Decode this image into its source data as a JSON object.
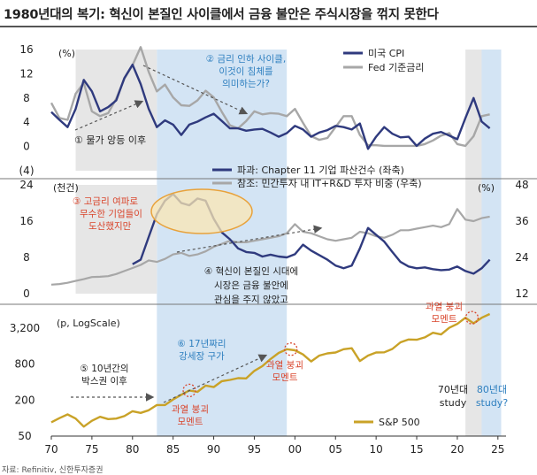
{
  "title": "1980년대의 복기: 혁신이 본질인 사이클에서 금융 불안은 주식시장을 꺾지 못한다",
  "source": "자료: Refinitiv, 신한투자증권",
  "colors": {
    "navy": "#2f3a7e",
    "gray": "#a7a7a7",
    "gold": "#c9a227",
    "shade_blue": "#d3e4f4",
    "shade_gray": "#e6e6e6",
    "text_blue": "#2e7fbf",
    "text_red": "#d9452c",
    "ellipse_fill": "#fbe7b4",
    "ellipse_stroke": "#e8a23b"
  },
  "chart_data": [
    {
      "type": "line",
      "panel": "top",
      "unit_label": "(%)",
      "ylim": [
        -4,
        16
      ],
      "yticks": [
        16,
        12,
        8,
        4,
        0,
        "(4)"
      ],
      "x": [
        1970,
        1971,
        1972,
        1973,
        1974,
        1975,
        1976,
        1977,
        1978,
        1979,
        1980,
        1981,
        1982,
        1983,
        1984,
        1985,
        1986,
        1987,
        1988,
        1989,
        1990,
        1991,
        1992,
        1993,
        1994,
        1995,
        1996,
        1997,
        1998,
        1999,
        2000,
        2001,
        2002,
        2003,
        2004,
        2005,
        2006,
        2007,
        2008,
        2009,
        2010,
        2011,
        2012,
        2013,
        2014,
        2015,
        2016,
        2017,
        2018,
        2019,
        2020,
        2021,
        2022,
        2023,
        2024
      ],
      "series": [
        {
          "name": "미국 CPI",
          "color": "navy",
          "values": [
            5.7,
            4.4,
            3.2,
            6.2,
            11.0,
            9.1,
            5.8,
            6.5,
            7.6,
            11.3,
            13.5,
            10.3,
            6.2,
            3.2,
            4.3,
            3.6,
            1.9,
            3.6,
            4.1,
            4.8,
            5.4,
            4.2,
            3.0,
            3.0,
            2.6,
            2.8,
            2.9,
            2.3,
            1.6,
            2.2,
            3.4,
            2.8,
            1.6,
            2.3,
            2.7,
            3.4,
            3.2,
            2.8,
            3.8,
            -0.4,
            1.6,
            3.2,
            2.1,
            1.5,
            1.6,
            0.1,
            1.3,
            2.1,
            2.4,
            1.8,
            1.2,
            4.7,
            8.0,
            4.1,
            3.0
          ]
        },
        {
          "name": "Fed 기준금리",
          "color": "gray",
          "values": [
            7.2,
            4.7,
            4.4,
            8.7,
            10.5,
            5.8,
            5.0,
            5.5,
            7.9,
            11.2,
            13.4,
            16.4,
            12.3,
            9.1,
            10.2,
            8.1,
            6.8,
            6.7,
            7.6,
            9.2,
            8.1,
            5.7,
            3.5,
            3.0,
            4.2,
            5.8,
            5.3,
            5.5,
            5.4,
            5.0,
            6.2,
            3.9,
            1.7,
            1.1,
            1.4,
            3.2,
            5.0,
            5.0,
            1.9,
            0.2,
            0.2,
            0.1,
            0.1,
            0.1,
            0.1,
            0.1,
            0.4,
            1.0,
            1.8,
            2.2,
            0.4,
            0.1,
            1.7,
            5.0,
            5.3
          ]
        }
      ],
      "annotations": [
        "① 물가 앙등 이후",
        "② 금리 인하 사이클, 이것이 침체를 의미하는가?"
      ]
    },
    {
      "type": "line",
      "panel": "middle",
      "left_unit_label": "(천건)",
      "right_unit_label": "(%)",
      "ylim_left": [
        0,
        24
      ],
      "ylim_right": [
        12,
        48
      ],
      "yticks_left": [
        24,
        16,
        8,
        0
      ],
      "yticks_right": [
        48,
        36,
        24,
        12
      ],
      "x": [
        1970,
        1971,
        1972,
        1973,
        1974,
        1975,
        1976,
        1977,
        1978,
        1979,
        1980,
        1981,
        1982,
        1983,
        1984,
        1985,
        1986,
        1987,
        1988,
        1989,
        1990,
        1991,
        1992,
        1993,
        1994,
        1995,
        1996,
        1997,
        1998,
        1999,
        2000,
        2001,
        2002,
        2003,
        2004,
        2005,
        2006,
        2007,
        2008,
        2009,
        2010,
        2011,
        2012,
        2013,
        2014,
        2015,
        2016,
        2017,
        2018,
        2019,
        2020,
        2021,
        2022,
        2023,
        2024
      ],
      "series": [
        {
          "name": "파과: Chapter 11 기업 파산건수 (좌축)",
          "color": "navy",
          "axis": "left",
          "values": [
            null,
            null,
            null,
            null,
            null,
            null,
            null,
            null,
            null,
            null,
            6.5,
            7.5,
            12.5,
            17.5,
            20.5,
            22.0,
            20.0,
            19.5,
            21.0,
            20.5,
            16.5,
            13.5,
            12.0,
            10.0,
            9.2,
            9.0,
            8.2,
            8.6,
            8.2,
            8.0,
            8.7,
            10.8,
            9.5,
            8.5,
            7.5,
            6.2,
            5.6,
            6.2,
            10.0,
            14.5,
            13.0,
            11.5,
            9.2,
            7.0,
            6.0,
            5.6,
            5.8,
            5.4,
            5.2,
            5.3,
            6.0,
            5.0,
            4.4,
            5.6,
            7.5
          ]
        },
        {
          "name": "참조: 민간투자 내 IT+R&D 투자 비중 (우축)",
          "color": "gray",
          "axis": "right",
          "values": [
            15.0,
            15.2,
            15.6,
            16.2,
            16.8,
            17.5,
            17.6,
            17.8,
            18.5,
            19.5,
            20.5,
            21.5,
            23.0,
            22.5,
            23.5,
            25.0,
            25.5,
            24.5,
            25.0,
            26.0,
            27.5,
            28.5,
            29.5,
            29.0,
            29.0,
            29.5,
            30.0,
            30.5,
            31.0,
            32.0,
            35.0,
            32.5,
            32.0,
            31.0,
            30.0,
            29.5,
            30.0,
            30.5,
            32.5,
            32.0,
            31.0,
            30.5,
            31.5,
            33.0,
            33.0,
            33.5,
            34.0,
            34.5,
            34.0,
            35.0,
            40.0,
            36.5,
            36.0,
            37.0,
            37.5
          ]
        }
      ],
      "annotations": [
        "③ 고금리 여파로 무수한 기업들이 도산했지만",
        "④ 혁신이 본질인 시대에 시장은 금융 불안에 관심을 주지 않았고"
      ]
    },
    {
      "type": "line",
      "panel": "bottom",
      "unit_label": "(p, LogScale)",
      "log_scale": true,
      "ylim": [
        50,
        5500
      ],
      "yticks": [
        3200,
        800,
        200,
        50
      ],
      "ytick_labels": [
        "3,200",
        "800",
        "200",
        "50"
      ],
      "x": [
        1970,
        1971,
        1972,
        1973,
        1974,
        1975,
        1976,
        1977,
        1978,
        1979,
        1980,
        1981,
        1982,
        1983,
        1984,
        1985,
        1986,
        1987,
        1988,
        1989,
        1990,
        1991,
        1992,
        1993,
        1994,
        1995,
        1996,
        1997,
        1998,
        1999,
        2000,
        2001,
        2002,
        2003,
        2004,
        2005,
        2006,
        2007,
        2008,
        2009,
        2010,
        2011,
        2012,
        2013,
        2014,
        2015,
        2016,
        2017,
        2018,
        2019,
        2020,
        2021,
        2022,
        2023,
        2024
      ],
      "series": [
        {
          "name": "S&P 500",
          "color": "gold",
          "values": [
            85,
            100,
            115,
            98,
            72,
            90,
            105,
            96,
            98,
            108,
            130,
            122,
            135,
            165,
            165,
            205,
            245,
            290,
            275,
            350,
            330,
            415,
            435,
            465,
            460,
            615,
            740,
            970,
            1230,
            1420,
            1360,
            1160,
            885,
            1110,
            1210,
            1250,
            1420,
            1470,
            900,
            1110,
            1250,
            1260,
            1430,
            1850,
            2060,
            2040,
            2240,
            2670,
            2500,
            3230,
            3750,
            4770,
            3840,
            4770,
            5500
          ]
        }
      ],
      "xticks": [
        70,
        75,
        80,
        85,
        90,
        95,
        "00",
        "05",
        10,
        15,
        20,
        25
      ],
      "annotations": [
        "⑤ 10년간의 박스권 이후",
        "⑥ 17년짜리 강세장 구가",
        "과열 붕괴 모멘트",
        "과열 붕괴 모멘트",
        "과열 붕괴 모멘트",
        "70년대 study",
        "80년대 study?"
      ]
    }
  ],
  "legends": {
    "top": [
      "미국 CPI",
      "Fed 기준금리"
    ],
    "middle": [
      "파과: Chapter 11 기업 파산건수 (좌축)",
      "참조: 민간투자 내 IT+R&D 투자 비중 (우축)"
    ],
    "bottom": [
      "S&P 500"
    ]
  },
  "text": {
    "a1": "① 물가 앙등 이후",
    "a2_l1": "② 금리 인하 사이클,",
    "a2_l2": "이것이 침체를",
    "a2_l3": "의미하는가?",
    "a3_l1": "③ 고금리 여파로",
    "a3_l2": "무수한 기업들이",
    "a3_l3": "도산했지만",
    "a4_l1": "④ 혁신이 본질인 시대에",
    "a4_l2": "시장은 금융 불안에",
    "a4_l3": "관심을 주지 않았고",
    "a5_l1": "⑤ 10년간의",
    "a5_l2": "박스권 이후",
    "a6_l1": "⑥ 17년짜리",
    "a6_l2": "강세장 구가",
    "burst_l1": "과열 붕괴",
    "burst_l2": "모멘트",
    "s70_l1": "70년대",
    "s70_l2": "study",
    "s80_l1": "80년대",
    "s80_l2": "study?"
  }
}
